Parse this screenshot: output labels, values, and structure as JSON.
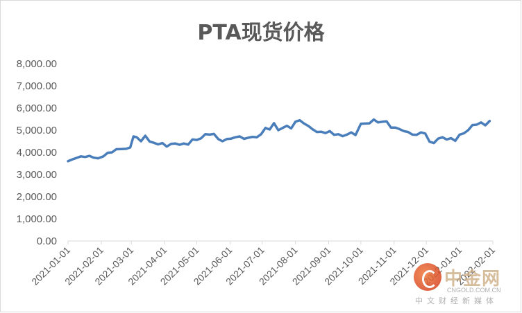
{
  "chart_data": {
    "type": "line",
    "title": "PTA现货价格",
    "xlabel": "",
    "ylabel": "",
    "ylim": [
      0,
      8000
    ],
    "y_ticks": [
      "0.00",
      "1,000.00",
      "2,000.00",
      "3,000.00",
      "4,000.00",
      "5,000.00",
      "6,000.00",
      "7,000.00",
      "8,000.00"
    ],
    "x_ticks": [
      "2021-01-01",
      "2021-02-01",
      "2021-03-01",
      "2021-04-01",
      "2021-05-01",
      "2021-06-01",
      "2021-07-01",
      "2021-08-01",
      "2021-09-01",
      "2021-10-01",
      "2021-11-01",
      "2021-12-01",
      "2022-01-01",
      "2022-02-01"
    ],
    "grid": false,
    "legend": "none",
    "line_color": "#4a7ebb",
    "series": [
      {
        "x": [
          "2021-01-01",
          "2021-01-05",
          "2021-01-09",
          "2021-01-13",
          "2021-01-17",
          "2021-01-21",
          "2021-01-25",
          "2021-01-29",
          "2021-02-03",
          "2021-02-07",
          "2021-02-11",
          "2021-02-15",
          "2021-02-20",
          "2021-02-24",
          "2021-02-28",
          "2021-03-03",
          "2021-03-06",
          "2021-03-10",
          "2021-03-14",
          "2021-03-18",
          "2021-03-22",
          "2021-03-26",
          "2021-03-30",
          "2021-04-03",
          "2021-04-07",
          "2021-04-11",
          "2021-04-15",
          "2021-04-19",
          "2021-04-23",
          "2021-04-27",
          "2021-05-01",
          "2021-05-05",
          "2021-05-09",
          "2021-05-13",
          "2021-05-17",
          "2021-05-21",
          "2021-05-25",
          "2021-05-29",
          "2021-06-02",
          "2021-06-06",
          "2021-06-10",
          "2021-06-14",
          "2021-06-18",
          "2021-06-22",
          "2021-06-26",
          "2021-06-30",
          "2021-07-04",
          "2021-07-08",
          "2021-07-12",
          "2021-07-16",
          "2021-07-20",
          "2021-07-24",
          "2021-07-28",
          "2021-08-01",
          "2021-08-05",
          "2021-08-09",
          "2021-08-13",
          "2021-08-17",
          "2021-08-21",
          "2021-08-25",
          "2021-08-29",
          "2021-09-02",
          "2021-09-06",
          "2021-09-10",
          "2021-09-14",
          "2021-09-18",
          "2021-09-22",
          "2021-09-26",
          "2021-10-01",
          "2021-10-05",
          "2021-10-09",
          "2021-10-13",
          "2021-10-17",
          "2021-10-21",
          "2021-10-25",
          "2021-10-29",
          "2021-11-02",
          "2021-11-06",
          "2021-11-10",
          "2021-11-14",
          "2021-11-18",
          "2021-11-22",
          "2021-11-26",
          "2021-11-30",
          "2021-12-04",
          "2021-12-08",
          "2021-12-12",
          "2021-12-16",
          "2021-12-20",
          "2021-12-24",
          "2021-12-28",
          "2022-01-01",
          "2022-01-05",
          "2022-01-09",
          "2022-01-13",
          "2022-01-17",
          "2022-01-21",
          "2022-01-25",
          "2022-01-29"
        ],
        "values": [
          3600,
          3680,
          3750,
          3820,
          3790,
          3840,
          3760,
          3730,
          3820,
          3980,
          4000,
          4140,
          4150,
          4160,
          4220,
          4720,
          4680,
          4500,
          4750,
          4490,
          4430,
          4360,
          4420,
          4260,
          4380,
          4400,
          4340,
          4400,
          4350,
          4580,
          4560,
          4630,
          4820,
          4800,
          4830,
          4600,
          4500,
          4600,
          4620,
          4680,
          4720,
          4610,
          4660,
          4700,
          4680,
          4820,
          5100,
          5030,
          5320,
          5000,
          5100,
          5200,
          5080,
          5380,
          5450,
          5300,
          5190,
          5040,
          4920,
          4930,
          4870,
          4960,
          4790,
          4820,
          4730,
          4800,
          4900,
          4780,
          5290,
          5300,
          5310,
          5480,
          5350,
          5380,
          5400,
          5120,
          5120,
          5050,
          4960,
          4920,
          4800,
          4790,
          4900,
          4850,
          4480,
          4420,
          4620,
          4680,
          4580,
          4640,
          4520,
          4800,
          4860,
          5000,
          5230,
          5250,
          5350,
          5220,
          5420
        ]
      }
    ]
  },
  "watermark": {
    "name": "中金网",
    "url": "CNGOLD.COM.CN",
    "subtitle": "中文财经新媒体"
  }
}
